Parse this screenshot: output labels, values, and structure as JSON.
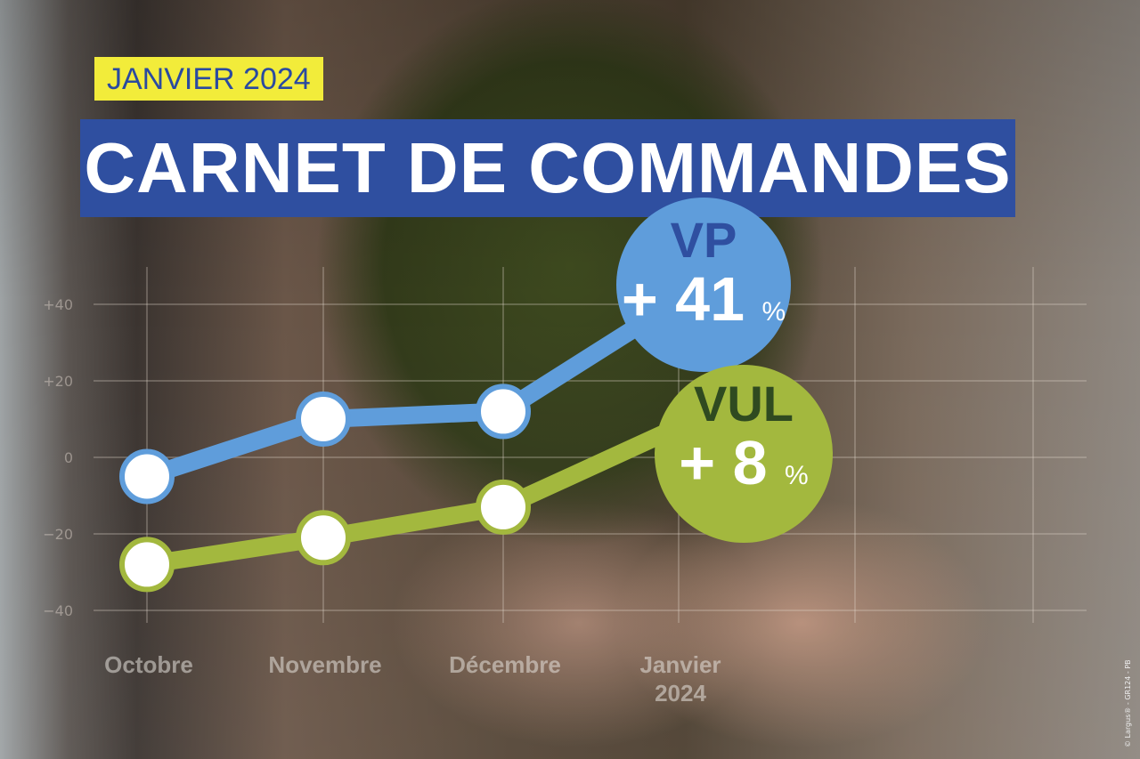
{
  "header": {
    "tag": "JANVIER 2024",
    "title": "CARNET DE COMMANDES"
  },
  "credit": "© Largus® - GR124 - PB",
  "colors": {
    "vp": "#5f9ddb",
    "vul": "#a3b83e",
    "banner": "#2f4fa0",
    "tag": "#f2ec3a"
  },
  "chart_data": {
    "type": "line",
    "categories": [
      "Octobre",
      "Novembre",
      "Décembre",
      "Janvier 2024"
    ],
    "category_labels": [
      [
        "Octobre"
      ],
      [
        "Novembre"
      ],
      [
        "Décembre"
      ],
      [
        "Janvier",
        "2024"
      ]
    ],
    "yticks": [
      "+40",
      "+20",
      "0",
      "−20",
      "−40"
    ],
    "ytick_values": [
      40,
      20,
      0,
      -20,
      -40
    ],
    "ylim": [
      -40,
      40
    ],
    "grid": true,
    "series": [
      {
        "name": "VP",
        "values": [
          -5,
          10,
          12,
          41
        ],
        "label": "+ 41",
        "unit": "%"
      },
      {
        "name": "VUL",
        "values": [
          -28,
          -21,
          -13,
          8
        ],
        "label": "+ 8",
        "unit": "%"
      }
    ]
  }
}
